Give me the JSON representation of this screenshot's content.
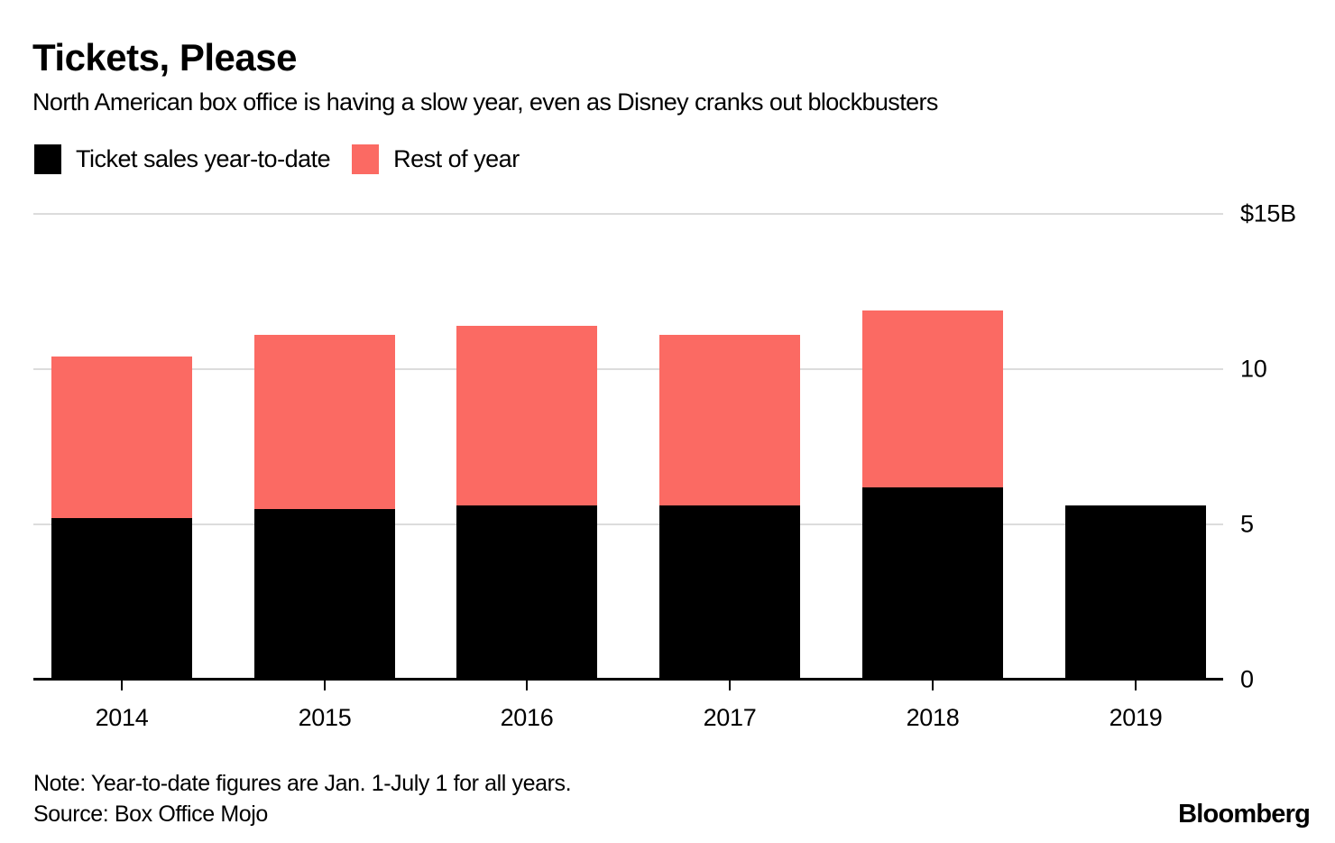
{
  "header": {
    "title": "Tickets, Please",
    "subtitle": "North American box office is having a slow year, even as Disney cranks out blockbusters"
  },
  "legend": [
    {
      "label": "Ticket sales year-to-date",
      "color": "#000000"
    },
    {
      "label": "Rest of year",
      "color": "#FB6A63"
    }
  ],
  "chart_data": {
    "type": "bar",
    "stacked": true,
    "title": "Tickets, Please",
    "subtitle": "North American box office is having a slow year, even as Disney cranks out blockbusters",
    "unit": "billions of U.S. dollars",
    "categories": [
      "2014",
      "2015",
      "2016",
      "2017",
      "2018",
      "2019"
    ],
    "series": [
      {
        "name": "Ticket sales year-to-date",
        "color": "#000000",
        "values": [
          5.2,
          5.5,
          5.6,
          5.6,
          6.2,
          5.6
        ]
      },
      {
        "name": "Rest of year",
        "color": "#FB6A63",
        "values": [
          5.2,
          5.6,
          5.8,
          5.5,
          5.7,
          0
        ]
      }
    ],
    "totals": [
      10.4,
      11.1,
      11.4,
      11.1,
      11.9,
      5.6
    ],
    "ylim": [
      0,
      15
    ],
    "ytick_values": [
      15,
      10,
      5,
      0
    ],
    "ytick_labels": [
      "$15B",
      "10",
      "5",
      "0"
    ],
    "axis_label_position": "right",
    "grid": "horizontal",
    "gridline_color": "#dcdcdc",
    "legend_position": "top-left"
  },
  "footer": {
    "note": "Note: Year-to-date figures are Jan. 1-July 1 for all years.",
    "source": "Source: Box Office Mojo",
    "brand": "Bloomberg"
  }
}
